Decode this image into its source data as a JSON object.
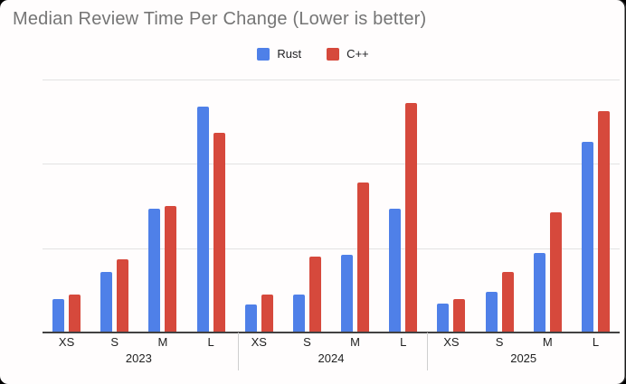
{
  "title": "Median Review Time Per Change (Lower is better)",
  "legend": {
    "items": [
      {
        "label": "Rust",
        "color": "#4f80e8"
      },
      {
        "label": "C++",
        "color": "#d6493c"
      }
    ]
  },
  "colors": {
    "rust": "#4f80e8",
    "cpp": "#d6493c",
    "title_text": "#757575",
    "axis_text": "#1f1f1f",
    "gridline": "#e2e2e2",
    "baseline": "#424242",
    "background": "#fffdfd"
  },
  "chart_data": {
    "type": "bar",
    "title": "Median Review Time Per Change (Lower is better)",
    "legend_position": "top",
    "y_axis_labels_visible": false,
    "ylim": [
      0,
      3
    ],
    "gridline_values": [
      1,
      2,
      3
    ],
    "unit": "relative (no y-axis tick labels shown)",
    "note": "Lower is better",
    "groups": [
      {
        "year": "2023",
        "categories": [
          "XS",
          "S",
          "M",
          "L"
        ],
        "series": [
          {
            "name": "Rust",
            "values": [
              0.4,
              0.72,
              1.47,
              2.68
            ]
          },
          {
            "name": "C++",
            "values": [
              0.45,
              0.87,
              1.5,
              2.37
            ]
          }
        ]
      },
      {
        "year": "2024",
        "categories": [
          "XS",
          "S",
          "M",
          "L"
        ],
        "series": [
          {
            "name": "Rust",
            "values": [
              0.33,
              0.45,
              0.92,
              1.47
            ]
          },
          {
            "name": "C++",
            "values": [
              0.45,
              0.9,
              1.78,
              2.72
            ]
          }
        ]
      },
      {
        "year": "2025",
        "categories": [
          "XS",
          "S",
          "M",
          "L"
        ],
        "series": [
          {
            "name": "Rust",
            "values": [
              0.34,
              0.48,
              0.94,
              2.26
            ]
          },
          {
            "name": "C++",
            "values": [
              0.4,
              0.72,
              1.43,
              2.63
            ]
          }
        ]
      }
    ]
  }
}
